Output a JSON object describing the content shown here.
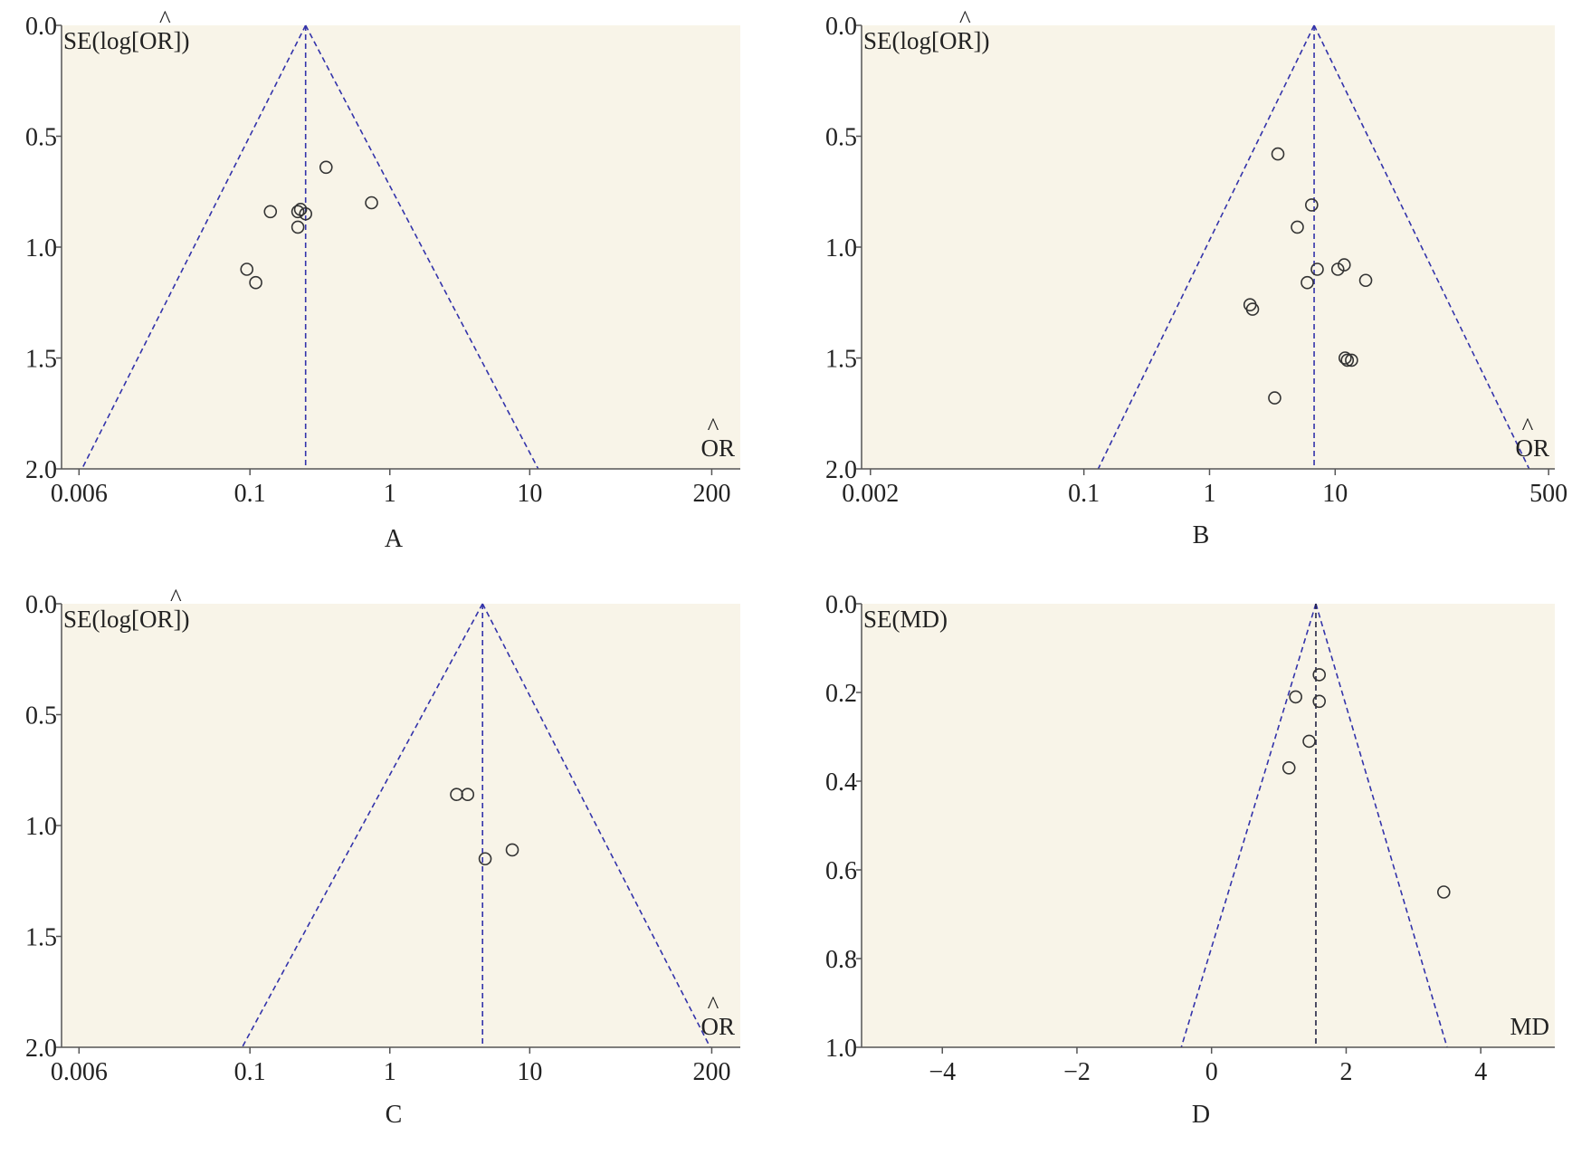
{
  "colors": {
    "plot_background": "#f8f4e8",
    "funnel_lines": "#3333aa",
    "marker_stroke": "#333333",
    "axis": "#555555",
    "text": "#222222"
  },
  "chart_data": [
    {
      "type": "scatter",
      "subtype": "funnel-plot",
      "panel_label": "A",
      "ylabel": "SE(log[OR])",
      "y_label_hat": "^",
      "xlabel": "OR",
      "x_label_hat": "^",
      "x_scale": "log",
      "xlim": [
        0.0045,
        320
      ],
      "ylim": [
        0,
        2.0
      ],
      "y_inverted": true,
      "x_ticks": [
        0.006,
        0.1,
        1,
        10,
        200
      ],
      "x_tick_labels": [
        "0.006",
        "0.1",
        "1",
        "10",
        "200"
      ],
      "y_ticks": [
        0,
        0.5,
        1.0,
        1.5,
        2.0
      ],
      "y_tick_labels": [
        "0.0",
        "0.5",
        "1.0",
        "1.5",
        "2.0"
      ],
      "pooled_estimate": 0.25,
      "funnel_base": [
        0.0063,
        11.5
      ],
      "points": [
        {
          "x": 0.35,
          "y": 0.64
        },
        {
          "x": 0.74,
          "y": 0.8
        },
        {
          "x": 0.14,
          "y": 0.84
        },
        {
          "x": 0.22,
          "y": 0.84
        },
        {
          "x": 0.23,
          "y": 0.83
        },
        {
          "x": 0.25,
          "y": 0.85
        },
        {
          "x": 0.22,
          "y": 0.91
        },
        {
          "x": 0.095,
          "y": 1.1
        },
        {
          "x": 0.11,
          "y": 1.16
        }
      ]
    },
    {
      "type": "scatter",
      "subtype": "funnel-plot",
      "panel_label": "B",
      "ylabel": "SE(log[OR])",
      "y_label_hat": "^",
      "xlabel": "OR",
      "x_label_hat": "^",
      "x_scale": "log",
      "xlim": [
        0.0017,
        560
      ],
      "ylim": [
        0,
        2.0
      ],
      "y_inverted": true,
      "x_ticks": [
        0.002,
        0.1,
        1,
        10,
        500
      ],
      "x_tick_labels": [
        "0.002",
        "0.1",
        "1",
        "10",
        "500"
      ],
      "y_ticks": [
        0,
        0.5,
        1.0,
        1.5,
        2.0
      ],
      "y_tick_labels": [
        "0.0",
        "0.5",
        "1.0",
        "1.5",
        "2.0"
      ],
      "pooled_estimate": 6.8,
      "funnel_base": [
        0.13,
        350
      ],
      "points": [
        {
          "x": 3.5,
          "y": 0.58
        },
        {
          "x": 6.5,
          "y": 0.81
        },
        {
          "x": 5.0,
          "y": 0.91
        },
        {
          "x": 7.2,
          "y": 1.1
        },
        {
          "x": 10.5,
          "y": 1.1
        },
        {
          "x": 11.8,
          "y": 1.08
        },
        {
          "x": 6.0,
          "y": 1.16
        },
        {
          "x": 17.5,
          "y": 1.15
        },
        {
          "x": 2.1,
          "y": 1.26
        },
        {
          "x": 2.2,
          "y": 1.28
        },
        {
          "x": 12.0,
          "y": 1.5
        },
        {
          "x": 12.5,
          "y": 1.51
        },
        {
          "x": 13.5,
          "y": 1.51
        },
        {
          "x": 3.3,
          "y": 1.68
        }
      ]
    },
    {
      "type": "scatter",
      "subtype": "funnel-plot",
      "panel_label": "C",
      "ylabel": "SE(log[OR])",
      "y_label_hat": "^",
      "xlabel": "OR",
      "x_label_hat": "^",
      "x_scale": "log",
      "xlim": [
        0.0045,
        320
      ],
      "ylim": [
        0,
        2.0
      ],
      "y_inverted": true,
      "x_ticks": [
        0.006,
        0.1,
        1,
        10,
        200
      ],
      "x_tick_labels": [
        "0.006",
        "0.1",
        "1",
        "10",
        "200"
      ],
      "y_ticks": [
        0,
        0.5,
        1.0,
        1.5,
        2.0
      ],
      "y_tick_labels": [
        "0.0",
        "0.5",
        "1.0",
        "1.5",
        "2.0"
      ],
      "pooled_estimate": 4.6,
      "funnel_base": [
        0.088,
        195
      ],
      "points": [
        {
          "x": 3.0,
          "y": 0.86
        },
        {
          "x": 3.6,
          "y": 0.86
        },
        {
          "x": 4.8,
          "y": 1.15
        },
        {
          "x": 7.5,
          "y": 1.11
        }
      ]
    },
    {
      "type": "scatter",
      "subtype": "funnel-plot",
      "panel_label": "D",
      "ylabel": "SE(MD)",
      "y_label_hat": "",
      "xlabel": "MD",
      "x_label_hat": "",
      "x_scale": "linear",
      "xlim": [
        -5.2,
        5.1
      ],
      "ylim": [
        0,
        1.0
      ],
      "y_inverted": true,
      "x_ticks": [
        -4,
        -2,
        0,
        2,
        4
      ],
      "x_tick_labels": [
        "−4",
        "−2",
        "0",
        "2",
        "4"
      ],
      "y_ticks": [
        0,
        0.2,
        0.4,
        0.6,
        0.8,
        1.0
      ],
      "y_tick_labels": [
        "0.0",
        "0.2",
        "0.4",
        "0.6",
        "0.8",
        "1.0"
      ],
      "pooled_estimate": 1.55,
      "funnel_base": [
        -0.45,
        3.5
      ],
      "points": [
        {
          "x": 1.6,
          "y": 0.16
        },
        {
          "x": 1.25,
          "y": 0.21
        },
        {
          "x": 1.6,
          "y": 0.22
        },
        {
          "x": 1.45,
          "y": 0.31
        },
        {
          "x": 1.15,
          "y": 0.37
        },
        {
          "x": 3.45,
          "y": 0.65
        }
      ]
    }
  ]
}
